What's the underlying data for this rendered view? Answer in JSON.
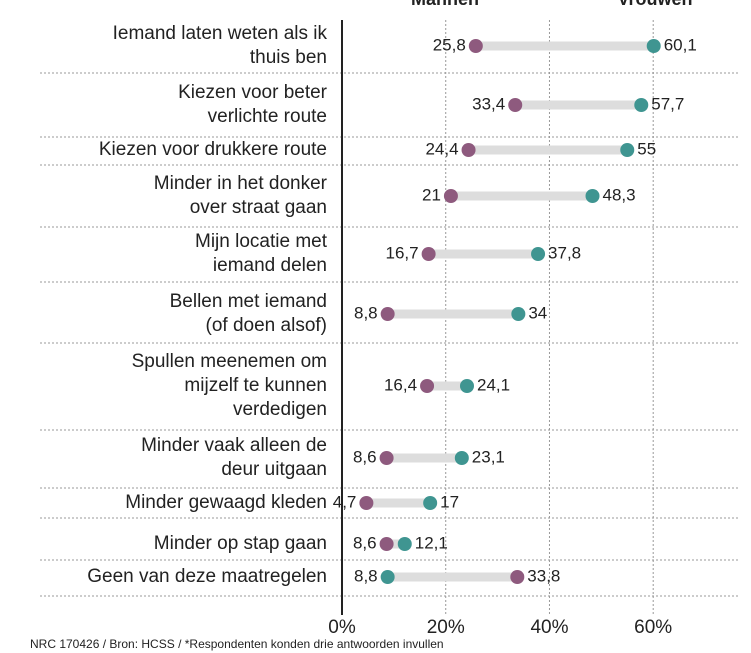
{
  "chart_data": {
    "type": "dumbbell",
    "categories": [
      [
        "Iemand laten weten als ik",
        "thuis ben"
      ],
      [
        "Kiezen voor beter",
        "verlichte route"
      ],
      [
        "Kiezen voor drukkere route"
      ],
      [
        "Minder in het donker",
        "over straat gaan"
      ],
      [
        "Mijn locatie met",
        "iemand delen"
      ],
      [
        "Bellen met iemand",
        "(of doen alsof)"
      ],
      [
        "Spullen meenemen om",
        "mijzelf te kunnen",
        "verdedigen"
      ],
      [
        "Minder vaak alleen de",
        "deur uitgaan"
      ],
      [
        "Minder gewaagd kleden"
      ],
      [
        "Minder op stap gaan"
      ],
      [
        "Geen van deze maatregelen"
      ]
    ],
    "series": [
      {
        "name": "Mannen",
        "color": "#8e5a7e",
        "values": [
          25.8,
          33.4,
          24.4,
          21,
          16.7,
          8.8,
          16.4,
          8.6,
          4.7,
          8.6,
          33.8
        ],
        "value_labels": [
          "25,8",
          "33,4",
          "24,4",
          "21",
          "16,7",
          "8,8",
          "16,4",
          "8,6",
          "4,7",
          "8,6",
          "33,8"
        ]
      },
      {
        "name": "Vrouwen",
        "color": "#3f9591",
        "values": [
          60.1,
          57.7,
          55,
          48.3,
          37.8,
          34,
          24.1,
          23.1,
          17,
          12.1,
          8.8
        ],
        "value_labels": [
          "60,1",
          "57,7",
          "55",
          "48,3",
          "37,8",
          "34",
          "24,1",
          "23,1",
          "17",
          "12,1",
          "8,8"
        ]
      }
    ],
    "xlim": [
      0,
      75
    ],
    "xticks": [
      {
        "value": 0,
        "label": "0%"
      },
      {
        "value": 20,
        "label": "20%"
      },
      {
        "value": 40,
        "label": "40%"
      },
      {
        "value": 60,
        "label": "60%"
      }
    ],
    "grid": true,
    "footnote": "NRC 170426 / Bron: HCSS / *Respondenten konden drie antwoorden invullen"
  }
}
